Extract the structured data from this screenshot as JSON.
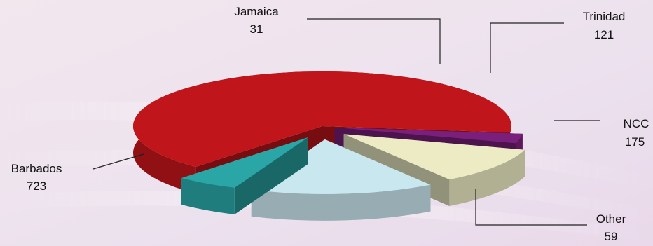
{
  "chart_data": {
    "type": "pie",
    "title": "",
    "style": "3d-exploded",
    "slices": [
      {
        "label": "Barbados",
        "value": 723,
        "color": "#c0151a"
      },
      {
        "label": "Jamaica",
        "value": 31,
        "color": "#7a1f7c"
      },
      {
        "label": "Trinidad",
        "value": 121,
        "color": "#ecebc4"
      },
      {
        "label": "NCC",
        "value": 175,
        "color": "#c9e7ef"
      },
      {
        "label": "Other",
        "value": 59,
        "color": "#2aa6a6"
      }
    ]
  }
}
